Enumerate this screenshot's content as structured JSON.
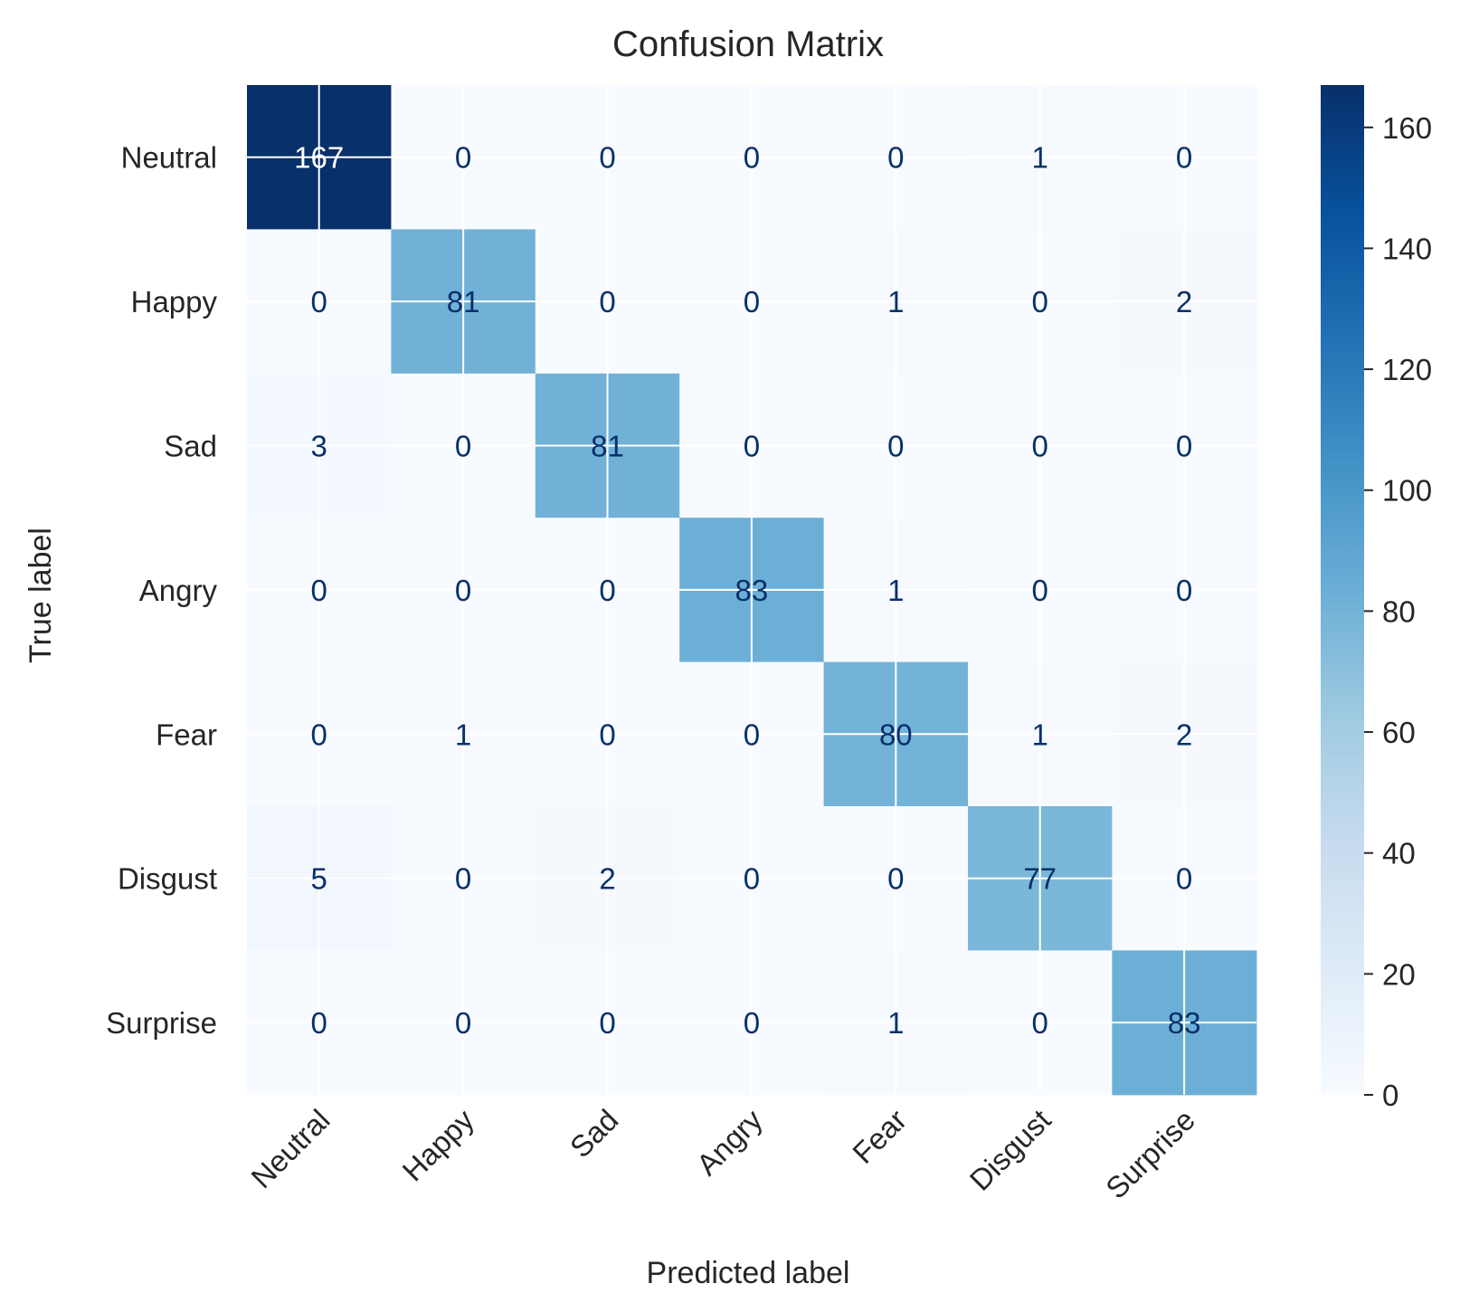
{
  "chart_data": {
    "type": "heatmap",
    "title": "Confusion Matrix",
    "xlabel": "Predicted label",
    "ylabel": "True label",
    "x_categories": [
      "Neutral",
      "Happy",
      "Sad",
      "Angry",
      "Fear",
      "Disgust",
      "Surprise"
    ],
    "y_categories": [
      "Neutral",
      "Happy",
      "Sad",
      "Angry",
      "Fear",
      "Disgust",
      "Surprise"
    ],
    "matrix": [
      [
        167,
        0,
        0,
        0,
        0,
        1,
        0
      ],
      [
        0,
        81,
        0,
        0,
        1,
        0,
        2
      ],
      [
        3,
        0,
        81,
        0,
        0,
        0,
        0
      ],
      [
        0,
        0,
        0,
        83,
        1,
        0,
        0
      ],
      [
        0,
        1,
        0,
        0,
        80,
        1,
        2
      ],
      [
        5,
        0,
        2,
        0,
        0,
        77,
        0
      ],
      [
        0,
        0,
        0,
        0,
        1,
        0,
        83
      ]
    ],
    "colormap": "Blues",
    "value_range": [
      0,
      167
    ],
    "colorbar_ticks": [
      0,
      20,
      40,
      60,
      80,
      100,
      120,
      140,
      160
    ],
    "grid": true,
    "text_color_light": "#ffffff",
    "text_color_dark": "#08306b"
  }
}
